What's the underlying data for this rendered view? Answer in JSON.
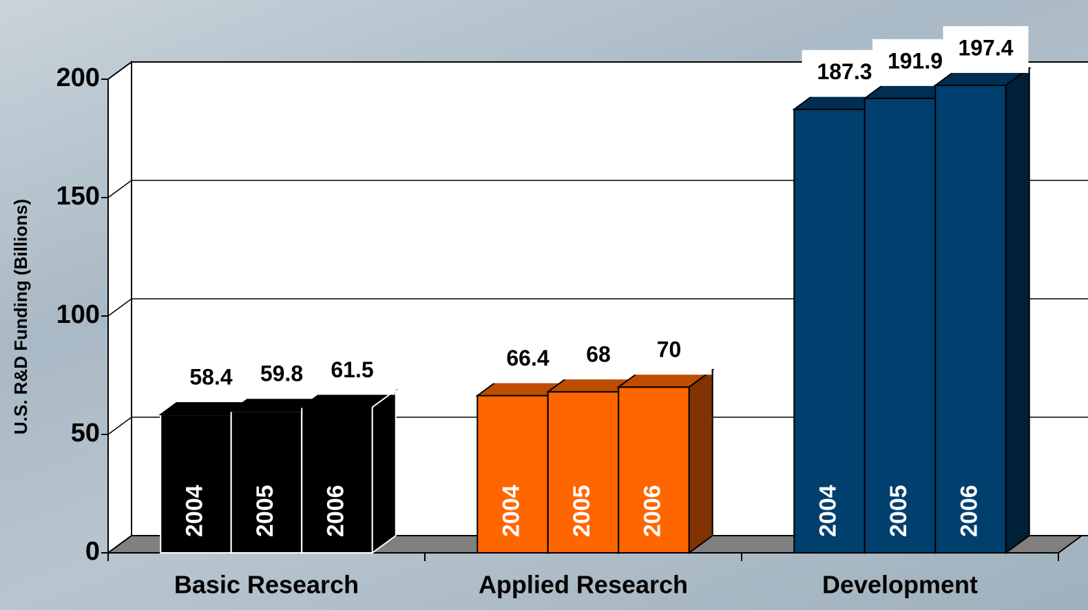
{
  "chart_data": {
    "type": "bar3d",
    "y_axis_label": "U.S. R&D Funding (Billions)",
    "categories": [
      "Basic Research",
      "Applied Research",
      "Development"
    ],
    "colors": [
      "#000000",
      "#ff6600",
      "#003f6e"
    ],
    "series": [
      {
        "name": "2004",
        "values": [
          58.4,
          66.4,
          187.3
        ]
      },
      {
        "name": "2005",
        "values": [
          59.8,
          68,
          191.9
        ]
      },
      {
        "name": "2006",
        "values": [
          61.5,
          70,
          197.4
        ]
      }
    ],
    "ylim": [
      0,
      200
    ],
    "yticks": [
      0,
      50,
      100,
      150,
      200
    ],
    "grid": true
  }
}
